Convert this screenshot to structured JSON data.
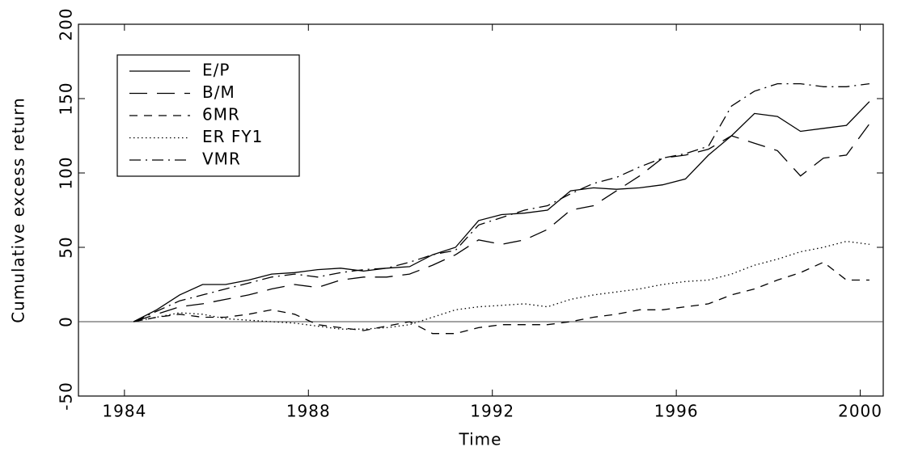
{
  "chart_data": {
    "type": "line",
    "x_label": "Time",
    "y_label": "Cumulative excess return",
    "x": [
      1984.2,
      1984.7,
      1985.2,
      1985.7,
      1986.2,
      1986.7,
      1987.2,
      1987.7,
      1988.2,
      1988.7,
      1989.2,
      1989.7,
      1990.2,
      1990.7,
      1991.2,
      1991.7,
      1992.2,
      1992.7,
      1993.2,
      1993.7,
      1994.2,
      1994.7,
      1995.2,
      1995.7,
      1996.2,
      1996.7,
      1997.2,
      1997.7,
      1998.2,
      1998.7,
      1999.2,
      1999.7,
      2000.2
    ],
    "series": [
      {
        "name": "E/P",
        "color": "#000000",
        "linestyle": "solid",
        "values": [
          0,
          8,
          18,
          25,
          25,
          28,
          32,
          33,
          35,
          36,
          34,
          36,
          37,
          45,
          50,
          68,
          72,
          73,
          75,
          88,
          90,
          89,
          90,
          92,
          96,
          112,
          125,
          140,
          138,
          128,
          130,
          132,
          148
        ]
      },
      {
        "name": "B/M",
        "color": "#000000",
        "linestyle": "longdash",
        "values": [
          0,
          5,
          10,
          12,
          15,
          18,
          22,
          25,
          23,
          28,
          30,
          30,
          32,
          38,
          45,
          55,
          52,
          55,
          62,
          75,
          78,
          88,
          98,
          110,
          112,
          116,
          125,
          120,
          115,
          98,
          110,
          112,
          133
        ]
      },
      {
        "name": "6MR",
        "color": "#000000",
        "linestyle": "dashed",
        "values": [
          0,
          3,
          5,
          3,
          3,
          5,
          8,
          5,
          -2,
          -4,
          -6,
          -3,
          0,
          -8,
          -8,
          -4,
          -2,
          -2,
          -2,
          0,
          3,
          5,
          8,
          8,
          10,
          12,
          18,
          22,
          28,
          33,
          40,
          28,
          28
        ]
      },
      {
        "name": "ER FY1",
        "color": "#000000",
        "linestyle": "dotted",
        "values": [
          0,
          3,
          6,
          5,
          2,
          1,
          0,
          -1,
          -3,
          -5,
          -5,
          -4,
          -2,
          3,
          8,
          10,
          11,
          12,
          10,
          15,
          18,
          20,
          22,
          25,
          27,
          28,
          32,
          38,
          42,
          47,
          50,
          54,
          52
        ]
      },
      {
        "name": "VMR",
        "color": "#000000",
        "linestyle": "dashdot",
        "values": [
          0,
          7,
          14,
          18,
          22,
          26,
          30,
          32,
          30,
          33,
          35,
          36,
          40,
          45,
          48,
          65,
          70,
          75,
          78,
          86,
          93,
          97,
          104,
          110,
          113,
          118,
          145,
          155,
          160,
          160,
          158,
          158,
          160
        ]
      }
    ],
    "xlim": [
      1983,
      2000.5
    ],
    "xticks": [
      1984,
      1988,
      1992,
      1996,
      2000
    ],
    "ylim": [
      -50,
      200
    ],
    "yticks": [
      -50,
      0,
      50,
      100,
      150,
      200
    ],
    "zero_line": true,
    "grid": false,
    "legend": "upper left"
  }
}
